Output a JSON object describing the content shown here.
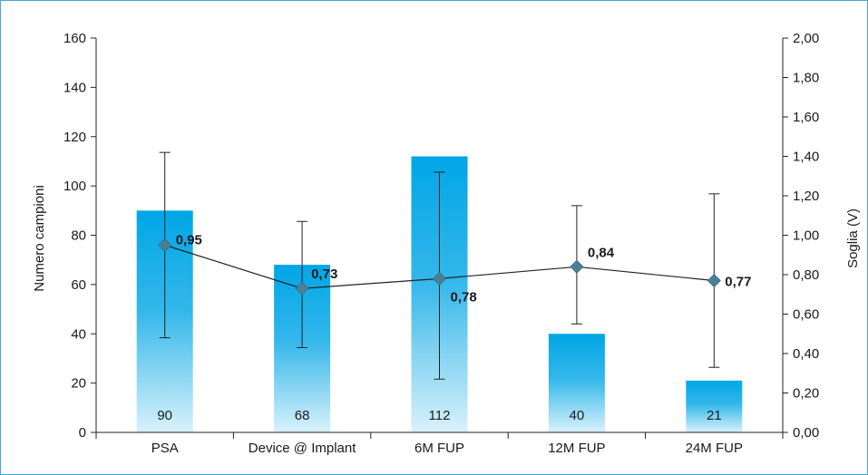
{
  "chart_data": {
    "type": "bar",
    "categories": [
      "PSA",
      "Device @ Implant",
      "6M FUP",
      "12M FUP",
      "24M FUP"
    ],
    "bar_series": {
      "values": [
        90,
        68,
        112,
        40,
        21
      ],
      "axis": "left",
      "color_top": "#00a6e6",
      "color_bottom": "#d9f1fb"
    },
    "line_series": {
      "values": [
        0.95,
        0.73,
        0.78,
        0.84,
        0.77
      ],
      "axis": "right",
      "error_low": [
        0.48,
        0.43,
        0.27,
        0.55,
        0.33
      ],
      "error_high": [
        1.42,
        1.07,
        1.32,
        1.15,
        1.21
      ],
      "color": "#4a7f96",
      "labels": [
        "0,95",
        "0,73",
        "0,78",
        "0,84",
        "0,77"
      ]
    },
    "bar_labels": [
      "90",
      "68",
      "112",
      "40",
      "21"
    ],
    "ylabel": "Numero campioni",
    "y2label": "Soglia (V)",
    "ylim": [
      0,
      160
    ],
    "y2lim": [
      0,
      2
    ],
    "yticks": [
      "0",
      "20",
      "40",
      "60",
      "80",
      "100",
      "120",
      "140",
      "160"
    ],
    "y2ticks": [
      "0,00",
      "0,20",
      "0,40",
      "0,60",
      "0,80",
      "1,00",
      "1,20",
      "1,40",
      "1,60",
      "1,80",
      "2,00"
    ],
    "grid": false
  }
}
